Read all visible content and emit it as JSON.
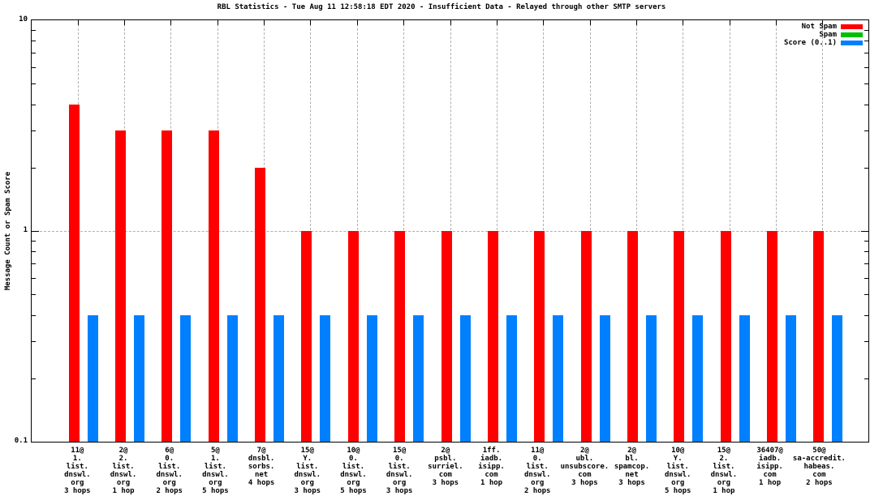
{
  "title": "RBL Statistics - Tue Aug 11 12:58:18 EDT 2020 - Insufficient Data - Relayed through other SMTP servers",
  "y_axis": {
    "label": "Message Count or Spam Score",
    "scale": "log",
    "tick_labels": [
      "10",
      "1",
      "0.1"
    ],
    "tick_values": [
      10,
      1,
      0.1
    ],
    "minor_tick_values": [
      0.2,
      0.3,
      0.4,
      0.5,
      0.6,
      0.7,
      0.8,
      0.9,
      2,
      3,
      4,
      5,
      6,
      7,
      8,
      9
    ]
  },
  "legend": {
    "position": "top-right",
    "items": [
      {
        "label": "Not Spam",
        "color": "#ff0000"
      },
      {
        "label": "Spam",
        "color": "#00c000"
      },
      {
        "label": "Score (0..1)",
        "color": "#0080ff"
      }
    ]
  },
  "colors": {
    "not_spam": "#ff0000",
    "spam": "#00c000",
    "score": "#0080ff",
    "grid": "#b0b0b0",
    "axis": "#000000",
    "background": "#ffffff"
  },
  "chart_data": {
    "type": "bar",
    "title": "RBL Statistics - Tue Aug 11 12:58:18 EDT 2020 - Insufficient Data - Relayed through other SMTP servers",
    "xlabel": "",
    "ylabel": "Message Count or Spam Score",
    "ylim": [
      0.1,
      10
    ],
    "yscale": "log",
    "grid": true,
    "legend_position": "top-right",
    "categories": [
      [
        "11@",
        "1.",
        "list.",
        "dnswl.",
        "org",
        "3 hops"
      ],
      [
        "2@",
        "2.",
        "list.",
        "dnswl.",
        "org",
        "1 hop"
      ],
      [
        "6@",
        "0.",
        "list.",
        "dnswl.",
        "org",
        "2 hops"
      ],
      [
        "5@",
        "1.",
        "list.",
        "dnswl.",
        "org",
        "5 hops"
      ],
      [
        "7@",
        "dnsbl.",
        "sorbs.",
        "net",
        "4 hops"
      ],
      [
        "15@",
        "Y.",
        "list.",
        "dnswl.",
        "org",
        "3 hops"
      ],
      [
        "10@",
        "0.",
        "list.",
        "dnswl.",
        "org",
        "5 hops"
      ],
      [
        "15@",
        "0.",
        "list.",
        "dnswl.",
        "org",
        "3 hops"
      ],
      [
        "2@",
        "psbl.",
        "surriel.",
        "com",
        "3 hops"
      ],
      [
        "1ff.",
        "iadb.",
        "isipp.",
        "com",
        "1 hop"
      ],
      [
        "11@",
        "0.",
        "list.",
        "dnswl.",
        "org",
        "2 hops"
      ],
      [
        "2@",
        "ubl.",
        "unsubscore.",
        "com",
        "3 hops"
      ],
      [
        "2@",
        "bl.",
        "spamcop.",
        "net",
        "3 hops"
      ],
      [
        "10@",
        "Y.",
        "list.",
        "dnswl.",
        "org",
        "5 hops"
      ],
      [
        "15@",
        "2.",
        "list.",
        "dnswl.",
        "org",
        "1 hop"
      ],
      [
        "36407@",
        "iadb.",
        "isipp.",
        "com",
        "1 hop"
      ],
      [
        "50@",
        "sa-accredit.",
        "habeas.",
        "com",
        "2 hops"
      ]
    ],
    "series": [
      {
        "name": "Not Spam",
        "color": "#ff0000",
        "values": [
          4,
          3,
          3,
          3,
          2,
          1,
          1,
          1,
          1,
          1,
          1,
          1,
          1,
          1,
          1,
          1,
          1
        ]
      },
      {
        "name": "Spam",
        "color": "#00c000",
        "values": [
          0,
          0,
          0,
          0,
          0,
          0,
          0,
          0,
          0,
          0,
          0,
          0,
          0,
          0,
          0,
          0,
          0
        ]
      },
      {
        "name": "Score (0..1)",
        "color": "#0080ff",
        "values": [
          0.4,
          0.4,
          0.4,
          0.4,
          0.4,
          0.4,
          0.4,
          0.4,
          0.4,
          0.4,
          0.4,
          0.4,
          0.4,
          0.4,
          0.4,
          0.4,
          0.4
        ]
      }
    ]
  }
}
